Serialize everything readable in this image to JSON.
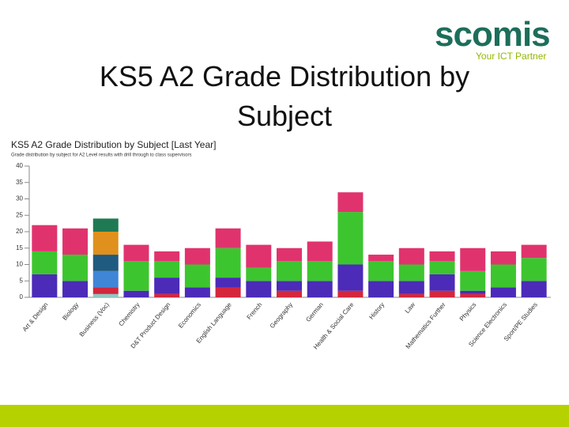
{
  "slide": {
    "title": "KS5 A2 Grade Distribution by Subject",
    "logo": "scomis",
    "tagline": "Your ICT Partner"
  },
  "chart_data": {
    "type": "bar",
    "stacked": true,
    "title": "KS5 A2 Grade Distribution by Subject [Last Year]",
    "subtitle": "Grade distribution by subject for A2 Level results with drill through to class supervisors",
    "categories": [
      "Art & Design",
      "Biology",
      "Business (Voc)",
      "Chemistry",
      "D&T Product Design",
      "Economics",
      "English Language",
      "French",
      "Geography",
      "German",
      "Health & Social Care",
      "History",
      "Law",
      "Mathematics Further",
      "Physics",
      "Science Electronics",
      "Sport/PE Studies"
    ],
    "series": [
      {
        "color": "#8ec9c0",
        "values": [
          0,
          0,
          1,
          0,
          0,
          0,
          0,
          0,
          0,
          0,
          0,
          0,
          0,
          0,
          0,
          0,
          0
        ]
      },
      {
        "color": "#d4263c",
        "values": [
          0,
          0,
          2,
          0,
          1,
          0,
          3,
          0,
          2,
          0,
          2,
          0,
          1,
          2,
          1,
          0,
          0
        ]
      },
      {
        "color": "#3f86d6",
        "values": [
          0,
          0,
          5,
          0,
          0,
          0,
          0,
          0,
          0,
          0,
          0,
          0,
          0,
          0,
          0,
          0,
          0
        ]
      },
      {
        "color": "#4b2bb8",
        "values": [
          7,
          5,
          0,
          2,
          5,
          3,
          3,
          5,
          3,
          5,
          8,
          5,
          4,
          5,
          1,
          3,
          5
        ]
      },
      {
        "color": "#1f5a80",
        "values": [
          0,
          0,
          5,
          0,
          0,
          0,
          0,
          0,
          0,
          0,
          0,
          0,
          0,
          0,
          0,
          0,
          0
        ]
      },
      {
        "color": "#e0901c",
        "values": [
          0,
          0,
          7,
          0,
          0,
          0,
          0,
          0,
          0,
          0,
          0,
          0,
          0,
          0,
          0,
          0,
          0
        ]
      },
      {
        "color": "#1f7a54",
        "values": [
          0,
          0,
          4,
          0,
          0,
          0,
          0,
          0,
          0,
          0,
          0,
          0,
          0,
          0,
          0,
          0,
          0
        ]
      },
      {
        "color": "#3dc52f",
        "values": [
          7,
          8,
          0,
          9,
          5,
          7,
          9,
          4,
          6,
          6,
          16,
          6,
          5,
          4,
          6,
          7,
          7
        ]
      },
      {
        "color": "#e0336e",
        "values": [
          8,
          8,
          0,
          5,
          3,
          5,
          6,
          7,
          4,
          6,
          6,
          2,
          5,
          3,
          7,
          4,
          4
        ]
      }
    ],
    "ylim": [
      0,
      40
    ],
    "yticks": [
      0,
      5,
      10,
      15,
      20,
      25,
      30,
      35,
      40
    ]
  }
}
